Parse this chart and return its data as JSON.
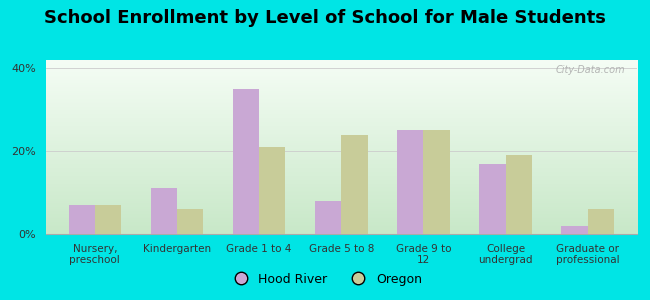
{
  "title": "School Enrollment by Level of School for Male Students",
  "categories": [
    "Nursery,\npreschool",
    "Kindergarten",
    "Grade 1 to 4",
    "Grade 5 to 8",
    "Grade 9 to\n12",
    "College\nundergrad",
    "Graduate or\nprofessional"
  ],
  "hood_river": [
    7.0,
    11.0,
    35.0,
    8.0,
    25.0,
    17.0,
    2.0
  ],
  "oregon": [
    7.0,
    6.0,
    21.0,
    24.0,
    25.0,
    19.0,
    6.0
  ],
  "hood_river_color": "#c9a8d4",
  "oregon_color": "#c8cc99",
  "background_color": "#00e5e5",
  "plot_bg_top": "#f5fdf5",
  "plot_bg_bottom": "#c8e8c8",
  "ylim": [
    0,
    42
  ],
  "yticks": [
    0,
    20,
    40
  ],
  "ytick_labels": [
    "0%",
    "20%",
    "40%"
  ],
  "title_fontsize": 13,
  "watermark_text": "City-Data.com",
  "legend_labels": [
    "Hood River",
    "Oregon"
  ],
  "bar_width": 0.32
}
